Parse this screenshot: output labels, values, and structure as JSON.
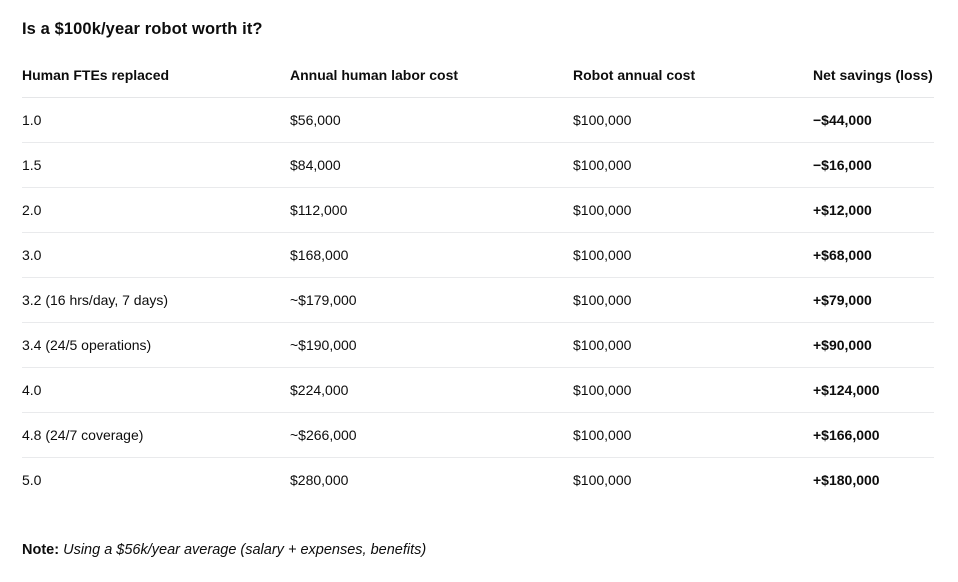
{
  "page": {
    "title": "Is a $100k/year robot worth it?"
  },
  "table": {
    "columns": [
      "Human FTEs replaced",
      "Annual human labor cost",
      "Robot annual cost",
      "Net savings (loss)"
    ],
    "rows": [
      {
        "ftes": "1.0",
        "human_cost": "$56,000",
        "robot_cost": "$100,000",
        "net": "−$44,000"
      },
      {
        "ftes": "1.5",
        "human_cost": "$84,000",
        "robot_cost": "$100,000",
        "net": "−$16,000"
      },
      {
        "ftes": "2.0",
        "human_cost": "$112,000",
        "robot_cost": "$100,000",
        "net": "+$12,000"
      },
      {
        "ftes": "3.0",
        "human_cost": "$168,000",
        "robot_cost": "$100,000",
        "net": "+$68,000"
      },
      {
        "ftes": "3.2 (16 hrs/day, 7 days)",
        "human_cost": "~$179,000",
        "robot_cost": "$100,000",
        "net": "+$79,000"
      },
      {
        "ftes": "3.4 (24/5 operations)",
        "human_cost": "~$190,000",
        "robot_cost": "$100,000",
        "net": "+$90,000"
      },
      {
        "ftes": "4.0",
        "human_cost": "$224,000",
        "robot_cost": "$100,000",
        "net": "+$124,000"
      },
      {
        "ftes": "4.8 (24/7 coverage)",
        "human_cost": "~$266,000",
        "robot_cost": "$100,000",
        "net": "+$166,000"
      },
      {
        "ftes": "5.0",
        "human_cost": "$280,000",
        "robot_cost": "$100,000",
        "net": "+$180,000"
      }
    ]
  },
  "note": {
    "label": "Note:",
    "text": " Using a $56k/year average (salary + expenses, benefits)"
  },
  "colors": {
    "background": "#ffffff",
    "text": "#0d0d0d",
    "divider": "#e5e6e8"
  }
}
